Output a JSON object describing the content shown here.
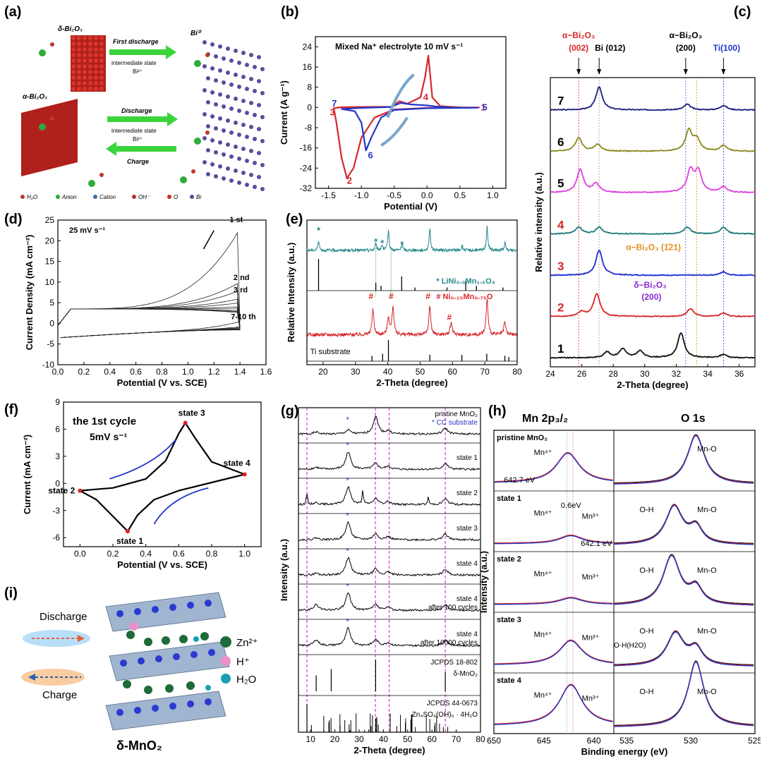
{
  "panels": {
    "a": {
      "label": "(a)",
      "delta": "δ-Bi₂O₃",
      "alpha": "α-Bi₂O₃",
      "bi0": "Bi⁰",
      "first_discharge": "First discharge",
      "intermediate1": "intermediate state",
      "bi2": "Bi²⁺",
      "discharge": "Discharge",
      "intermediate2": "intermediate state",
      "bi2b": "Bi²⁺",
      "charge": "Charge",
      "legend": [
        "H₂O",
        "Anion",
        "Cation",
        "OH⁻",
        "O",
        "Bi"
      ],
      "colors": {
        "water": "#c0392b",
        "anion": "#2eaa3a",
        "cation": "#3b6fa8",
        "oh": "#b03030",
        "o": "#d3261c",
        "bi": "#5a4aa0"
      }
    },
    "b": {
      "label": "(b)"
    },
    "c": {
      "label": "(c)"
    },
    "d": {
      "label": "(d)"
    },
    "e": {
      "label": "(e)"
    },
    "f": {
      "label": "(f)"
    },
    "g": {
      "label": "(g)"
    },
    "h": {
      "label": "(h)"
    },
    "i": {
      "label": "(i)",
      "discharge": "Discharge",
      "charge": "Charge",
      "zn": "Zn²⁺",
      "h": "H⁺",
      "h2o": "H₂O",
      "title": "δ-MnO₂"
    }
  },
  "chart_data": [
    {
      "id": "b",
      "type": "line",
      "title": "Mixed Na⁺ electrolyte 10 mV s⁻¹",
      "xlabel": "Potential (V)",
      "ylabel": "Current (A g⁻¹)",
      "xlim": [
        -1.7,
        1.2
      ],
      "ylim": [
        -32,
        28
      ],
      "xticks": [
        -1.5,
        -1.0,
        -0.5,
        0.0,
        0.5,
        1.0
      ],
      "yticks": [
        24,
        16,
        8,
        0,
        -8,
        -16,
        -24,
        -32
      ],
      "series": [
        {
          "name": "red",
          "color": "#d7262b",
          "points": [
            [
              0.8,
              0.0
            ],
            [
              0.5,
              0.05
            ],
            [
              0.2,
              0.5
            ],
            [
              0.08,
              4
            ],
            [
              0.02,
              20.5
            ],
            [
              -0.03,
              12
            ],
            [
              -0.1,
              4
            ],
            [
              -0.3,
              1.5
            ],
            [
              -0.42,
              2.5
            ],
            [
              -0.55,
              0.3
            ],
            [
              -1.0,
              0.2
            ],
            [
              -1.3,
              0.1
            ],
            [
              -1.42,
              -0.3
            ],
            [
              -1.38,
              -6
            ],
            [
              -1.3,
              -20
            ],
            [
              -1.22,
              -28
            ],
            [
              -1.12,
              -24
            ],
            [
              -1.0,
              -12
            ],
            [
              -0.8,
              -4
            ],
            [
              -0.5,
              -0.8
            ],
            [
              0.0,
              -0.2
            ],
            [
              0.8,
              0.0
            ]
          ]
        },
        {
          "name": "blue",
          "color": "#2336c8",
          "points": [
            [
              0.78,
              -0.1
            ],
            [
              0.4,
              -0.1
            ],
            [
              0.2,
              0.2
            ],
            [
              0.0,
              0.8
            ],
            [
              -0.25,
              1.2
            ],
            [
              -0.4,
              1.8
            ],
            [
              -0.55,
              0.2
            ],
            [
              -1.0,
              -0.2
            ],
            [
              -1.3,
              -0.6
            ],
            [
              -1.1,
              -1.5
            ],
            [
              -1.0,
              -6
            ],
            [
              -0.93,
              -17
            ],
            [
              -0.85,
              -12
            ],
            [
              -0.7,
              -4
            ],
            [
              -0.5,
              -1
            ],
            [
              0.0,
              -0.3
            ],
            [
              0.78,
              -0.1
            ]
          ]
        }
      ],
      "annotations": [
        "1",
        "2",
        "3",
        "4",
        "5",
        "6",
        "7"
      ]
    },
    {
      "id": "c",
      "type": "line",
      "xlabel": "2-Theta (degree)",
      "ylabel": "Relative intensity (a.u.)",
      "xlim": [
        24,
        37
      ],
      "xticks": [
        24,
        26,
        28,
        30,
        32,
        34,
        36
      ],
      "top_labels": [
        "α−Bi₂O₃",
        "(002)",
        "Bi (012)",
        "α−Bi₂O₃",
        "(200)",
        "Ti(100)"
      ],
      "inset_labels": [
        "α−Bi₂O₃ (1̄21)",
        "δ−Bi₂O₃",
        "(200)"
      ],
      "series": [
        {
          "name": "7",
          "color": "#1b1f7a",
          "peaks": [
            [
              27.1,
              1.0
            ],
            [
              32.7,
              0.25
            ],
            [
              35.0,
              0.2
            ]
          ]
        },
        {
          "name": "6",
          "color": "#8a8a20",
          "peaks": [
            [
              25.8,
              0.6
            ],
            [
              27.0,
              0.3
            ],
            [
              32.8,
              0.9
            ],
            [
              33.3,
              0.5
            ],
            [
              35.0,
              0.25
            ]
          ]
        },
        {
          "name": "5",
          "color": "#e23ee0",
          "peaks": [
            [
              25.9,
              1.0
            ],
            [
              26.9,
              0.4
            ],
            [
              32.9,
              0.95
            ],
            [
              33.4,
              0.9
            ],
            [
              35.0,
              0.25
            ]
          ]
        },
        {
          "name": "4",
          "color": "#1f7a7a",
          "peaks": [
            [
              25.8,
              0.3
            ],
            [
              27.1,
              0.3
            ],
            [
              32.7,
              0.3
            ],
            [
              35.0,
              0.3
            ]
          ]
        },
        {
          "name": "3",
          "color": "#1f2fd0",
          "peaks": [
            [
              27.1,
              1.1
            ],
            [
              35.0,
              0.15
            ]
          ]
        },
        {
          "name": "2",
          "color": "#d7262b",
          "peaks": [
            [
              26.0,
              0.2
            ],
            [
              26.95,
              1.0
            ],
            [
              32.9,
              0.35
            ],
            [
              35.0,
              0.15
            ]
          ]
        },
        {
          "name": "1",
          "color": "#111111",
          "peaks": [
            [
              27.6,
              0.25
            ],
            [
              28.6,
              0.4
            ],
            [
              29.7,
              0.3
            ],
            [
              32.3,
              1.1
            ],
            [
              35.0,
              0.15
            ]
          ]
        }
      ]
    },
    {
      "id": "d",
      "type": "line",
      "title": "25 mV s⁻¹",
      "xlabel": "Potential (V vs. SCE)",
      "ylabel": "Current Density (mA cm⁻²)",
      "xlim": [
        0,
        1.6
      ],
      "ylim": [
        -10,
        25
      ],
      "xticks": [
        0.0,
        0.2,
        0.4,
        0.6,
        0.8,
        1.0,
        1.2,
        1.4,
        1.6
      ],
      "yticks": [
        25,
        20,
        15,
        10,
        5,
        0,
        -5,
        -10
      ],
      "labels": [
        "1 st",
        "2 nd",
        "3 rd",
        "7-10 th"
      ],
      "end_values": [
        23,
        10,
        8,
        6,
        5,
        4,
        3.5,
        3,
        2.8,
        2.6
      ]
    },
    {
      "id": "e",
      "type": "line",
      "xlabel": "2-Theta (degree)",
      "ylabel": "Relative Intensity (a.u.)",
      "xlim": [
        15,
        80
      ],
      "xticks": [
        20,
        30,
        40,
        50,
        60,
        70,
        80
      ],
      "labels": [
        "* LiNi₀.₅Mn₁.₅O₄",
        "#  Ni₀.₂₅Mn₀.₇₅O",
        "Ti substrate"
      ],
      "teal_peaks": [
        [
          18.6,
          0.4
        ],
        [
          36.3,
          0.3
        ],
        [
          38.2,
          0.25
        ],
        [
          40.2,
          0.8
        ],
        [
          44.4,
          0.25
        ],
        [
          53.0,
          0.9
        ],
        [
          63.0,
          0.2
        ],
        [
          70.7,
          1.0
        ],
        [
          76.2,
          0.3
        ]
      ],
      "ref1_peaks": [
        [
          18.6,
          1.0
        ],
        [
          36.3,
          0.25
        ],
        [
          37.9,
          0.15
        ],
        [
          44.3,
          0.45
        ],
        [
          48.4,
          0.1
        ],
        [
          58.3,
          0.1
        ],
        [
          64.1,
          0.3
        ],
        [
          67.4,
          0.15
        ],
        [
          75.6,
          0.1
        ]
      ],
      "red_peaks": [
        [
          35.4,
          0.7
        ],
        [
          40.2,
          0.5
        ],
        [
          41.6,
          0.8
        ],
        [
          53.0,
          0.8
        ],
        [
          59.6,
          0.35
        ],
        [
          70.7,
          1.0
        ],
        [
          76.2,
          0.35
        ]
      ],
      "ti_peaks": [
        [
          35.1,
          0.25
        ],
        [
          38.4,
          0.35
        ],
        [
          40.2,
          1.0
        ],
        [
          53.0,
          0.3
        ],
        [
          62.9,
          0.3
        ],
        [
          70.6,
          0.35
        ],
        [
          76.2,
          0.25
        ],
        [
          77.4,
          0.2
        ]
      ]
    },
    {
      "id": "f",
      "type": "line",
      "title": "the 1st cycle",
      "subtitle": "5mV s⁻¹",
      "xlabel": "Potential (V vs. SCE)",
      "ylabel": "Current (mA cm⁻²)",
      "xlim": [
        -0.1,
        1.1
      ],
      "ylim": [
        -7,
        9
      ],
      "xticks": [
        0.0,
        0.2,
        0.4,
        0.6,
        0.8,
        1.0
      ],
      "yticks": [
        9,
        6,
        3,
        0,
        -3,
        -6
      ],
      "states": [
        {
          "label": "state 1",
          "x": 0.29,
          "y": -5.3
        },
        {
          "label": "state 2",
          "x": 0.0,
          "y": -0.8
        },
        {
          "label": "state 3",
          "x": 0.64,
          "y": 6.7
        },
        {
          "label": "state 4",
          "x": 1.0,
          "y": 1.0
        }
      ]
    },
    {
      "id": "g",
      "type": "line",
      "xlabel": "2-Theta (degree)",
      "ylabel": "Intensity (a.u.)",
      "xlim": [
        5,
        80
      ],
      "xticks": [
        10,
        20,
        30,
        40,
        50,
        60,
        70,
        80
      ],
      "rows": [
        "pristine MnO₂",
        "state 1",
        "state 2",
        "state 3",
        "state 4",
        "state 4",
        "state 4"
      ],
      "row_sublabels": [
        "* CC substrate",
        "",
        "",
        "",
        "",
        "after 100 cycles",
        "after 10000 cycles"
      ],
      "refs": [
        "JCPDS 18-802",
        "δ-MnO₂",
        "JCPDS 44-0673",
        "Zn₄SO₄(OH)₆ · 4H₂O"
      ],
      "dashed_lines": [
        8.5,
        36.7,
        42.4,
        65.5
      ]
    },
    {
      "id": "h",
      "type": "line",
      "xlabel": "Binding energy (eV)",
      "ylabel": "Intensity (a.u.)",
      "xticks": [
        650,
        645,
        640,
        535,
        530,
        525
      ],
      "headers": [
        "Mn 2p₃/₂",
        "O 1s"
      ],
      "rows": [
        "pristine MnO₂",
        "state 1",
        "state 2",
        "state 3",
        "state 4"
      ],
      "annotations": [
        "Mn⁴⁺",
        "642.7 eV",
        "0.6eV",
        "Mn³⁺",
        "642.1 eV",
        "Mn-O",
        "O-H",
        "O-H(H2O)"
      ]
    }
  ]
}
